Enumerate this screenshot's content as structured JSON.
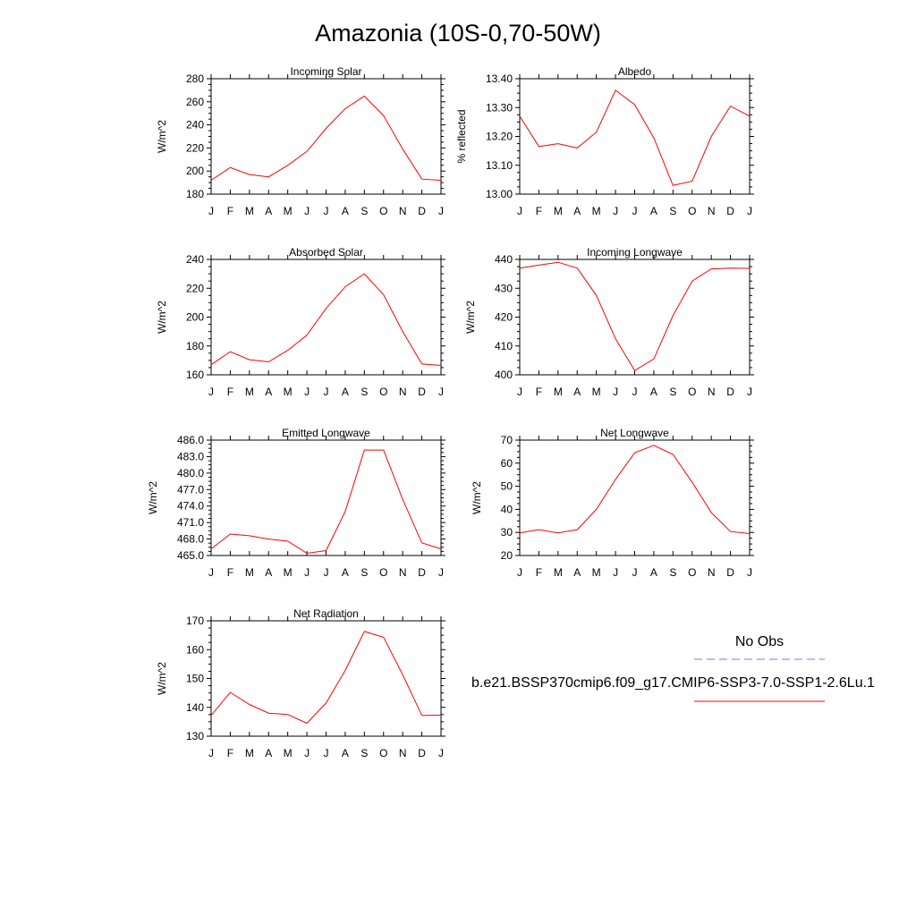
{
  "figure": {
    "title": "Amazonia (10S-0,70-50W)",
    "line_color": "#ff0000",
    "obs_line_color": "#7777ff"
  },
  "legend": {
    "obs_label": "No Obs",
    "model_label": "b.e21.BSSP370cmip6.f09_g17.CMIP6-SSP3-7.0-SSP1-2.6Lu.1"
  },
  "chart_data": [
    {
      "type": "line",
      "title": "Incoming Solar",
      "ylabel": "W/m^2",
      "categories": [
        "J",
        "F",
        "M",
        "A",
        "M",
        "J",
        "J",
        "A",
        "S",
        "O",
        "N",
        "D",
        "J"
      ],
      "ylim": [
        180,
        280
      ],
      "yticks": [
        180,
        200,
        220,
        240,
        260,
        280
      ],
      "ytick_labels": [
        "180",
        "200",
        "220",
        "240",
        "260",
        "280"
      ],
      "values": [
        192,
        203,
        197,
        195,
        205,
        217,
        237,
        254,
        265,
        248,
        219,
        193,
        192
      ]
    },
    {
      "type": "line",
      "title": "Albedo",
      "ylabel": "% reflected",
      "categories": [
        "J",
        "F",
        "M",
        "A",
        "M",
        "J",
        "J",
        "A",
        "S",
        "O",
        "N",
        "D",
        "J"
      ],
      "ylim": [
        13.0,
        13.4
      ],
      "yticks": [
        13.0,
        13.1,
        13.2,
        13.3,
        13.4
      ],
      "ytick_labels": [
        "13.00",
        "13.10",
        "13.20",
        "13.30",
        "13.40"
      ],
      "values": [
        13.27,
        13.165,
        13.175,
        13.16,
        13.215,
        13.36,
        13.31,
        13.195,
        13.03,
        13.045,
        13.2,
        13.305,
        13.27
      ]
    },
    {
      "type": "line",
      "title": "Absorbed Solar",
      "ylabel": "W/m^2",
      "categories": [
        "J",
        "F",
        "M",
        "A",
        "M",
        "J",
        "J",
        "A",
        "S",
        "O",
        "N",
        "D",
        "J"
      ],
      "ylim": [
        160,
        240
      ],
      "yticks": [
        160,
        180,
        200,
        220,
        240
      ],
      "ytick_labels": [
        "160",
        "180",
        "200",
        "220",
        "240"
      ],
      "values": [
        167,
        176,
        170.5,
        169,
        177,
        187.5,
        206,
        221,
        230,
        215.5,
        190,
        167.5,
        166.5
      ]
    },
    {
      "type": "line",
      "title": "Incoming Longwave",
      "ylabel": "W/m^2",
      "categories": [
        "J",
        "F",
        "M",
        "A",
        "M",
        "J",
        "J",
        "A",
        "S",
        "O",
        "N",
        "D",
        "J"
      ],
      "ylim": [
        400,
        440
      ],
      "yticks": [
        400,
        410,
        420,
        430,
        440
      ],
      "ytick_labels": [
        "400",
        "410",
        "420",
        "430",
        "440"
      ],
      "values": [
        437,
        438,
        439,
        437,
        427.5,
        412.5,
        401.5,
        405.5,
        420.5,
        432.5,
        436.7,
        437,
        436.9
      ]
    },
    {
      "type": "line",
      "title": "Emitted Longwave",
      "ylabel": "W/m^2",
      "categories": [
        "J",
        "F",
        "M",
        "A",
        "M",
        "J",
        "J",
        "A",
        "S",
        "O",
        "N",
        "D",
        "J"
      ],
      "ylim": [
        465,
        486
      ],
      "yticks": [
        465,
        468,
        471,
        474,
        477,
        480,
        483,
        486
      ],
      "ytick_labels": [
        "465.0",
        "468.0",
        "471.0",
        "474.0",
        "477.0",
        "480.0",
        "483.0",
        "486.0"
      ],
      "values": [
        466.2,
        468.9,
        468.6,
        468,
        467.6,
        465.4,
        465.9,
        473,
        484.2,
        484.2,
        475.2,
        467.3,
        466.2
      ]
    },
    {
      "type": "line",
      "title": "Net Longwave",
      "ylabel": "W/m^2",
      "categories": [
        "J",
        "F",
        "M",
        "A",
        "M",
        "J",
        "J",
        "A",
        "S",
        "O",
        "N",
        "D",
        "J"
      ],
      "ylim": [
        20,
        70
      ],
      "yticks": [
        20,
        30,
        40,
        50,
        60,
        70
      ],
      "ytick_labels": [
        "20",
        "30",
        "40",
        "50",
        "60",
        "70"
      ],
      "values": [
        29.8,
        31.2,
        29.8,
        31.2,
        40,
        53,
        64.5,
        67.7,
        63.8,
        51.7,
        38.6,
        30.4,
        29.5
      ]
    },
    {
      "type": "line",
      "title": "Net Radiation",
      "ylabel": "W/m^2",
      "categories": [
        "J",
        "F",
        "M",
        "A",
        "M",
        "J",
        "J",
        "A",
        "S",
        "O",
        "N",
        "D",
        "J"
      ],
      "ylim": [
        130,
        170
      ],
      "yticks": [
        130,
        140,
        150,
        160,
        170
      ],
      "ytick_labels": [
        "130",
        "140",
        "150",
        "160",
        "170"
      ],
      "values": [
        137.2,
        145.2,
        141,
        138,
        137.5,
        134.5,
        141.5,
        152.8,
        166.3,
        164.3,
        151.3,
        137.2,
        137.3
      ]
    }
  ]
}
